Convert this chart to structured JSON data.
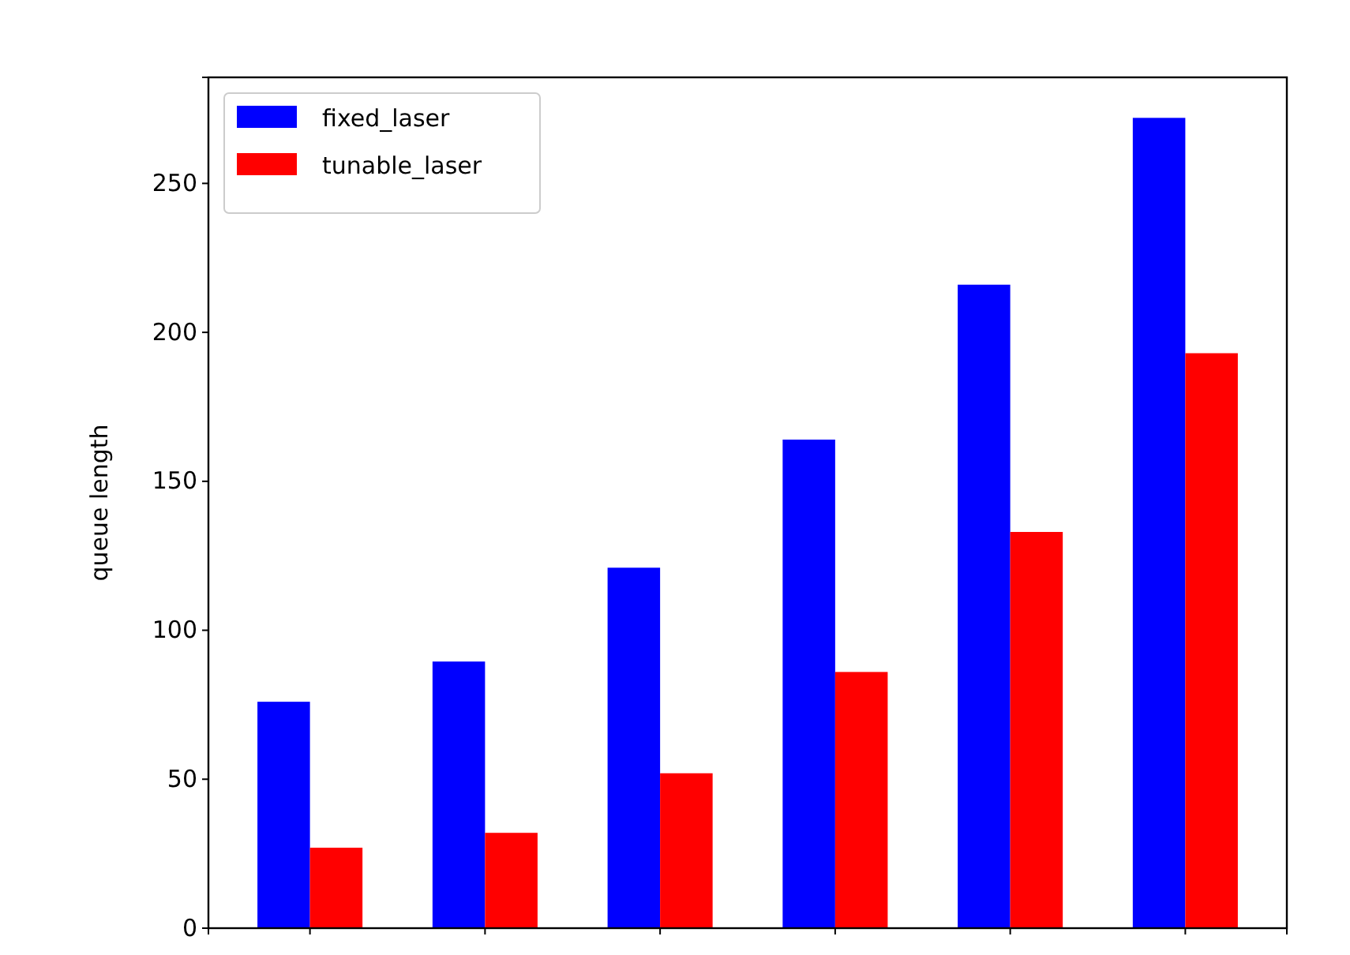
{
  "chart_data": {
    "type": "bar",
    "ylabel": "queue length",
    "categories": [
      null,
      null,
      null,
      null,
      null,
      null
    ],
    "series": [
      {
        "name": "fixed_laser",
        "color": "#0000ff",
        "values": [
          76,
          89.5,
          121,
          164,
          216,
          272
        ]
      },
      {
        "name": "tunable_laser",
        "color": "#ff0000",
        "values": [
          27,
          32,
          52,
          86,
          133,
          193
        ]
      }
    ],
    "ylim": [
      0,
      285.6
    ],
    "yticks": [
      0,
      50,
      100,
      150,
      200,
      250
    ],
    "grid": false,
    "legend": "top left"
  }
}
